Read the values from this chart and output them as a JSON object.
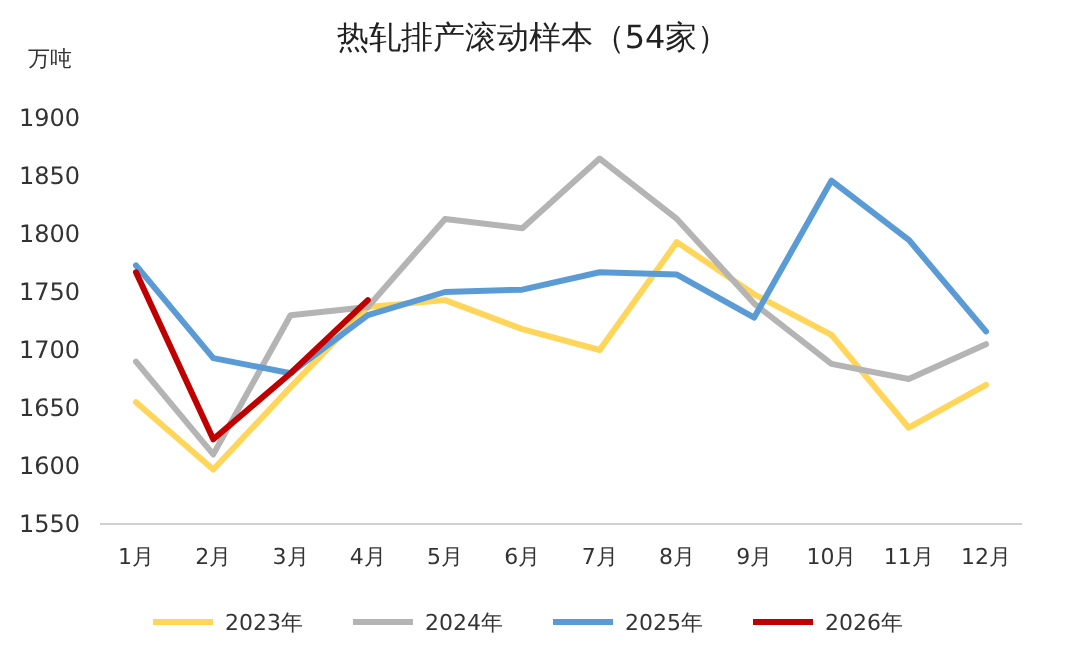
{
  "chart_data": {
    "type": "line",
    "title": "热轧排产滚动样本（54家）",
    "ylabel": "万吨",
    "categories": [
      "1月",
      "2月",
      "3月",
      "4月",
      "5月",
      "6月",
      "7月",
      "8月",
      "9月",
      "10月",
      "11月",
      "12月"
    ],
    "ylim": [
      1550,
      1900
    ],
    "yticks": [
      1550,
      1600,
      1650,
      1700,
      1750,
      1800,
      1850,
      1900
    ],
    "grid": false,
    "legend": "bottom",
    "series": [
      {
        "name": "2023年",
        "color": "#ffd55a",
        "values": [
          1655,
          1597,
          1668,
          1737,
          1743,
          1718,
          1700,
          1793,
          1748,
          1713,
          1633,
          1670
        ]
      },
      {
        "name": "2024年",
        "color": "#b4b4b4",
        "values": [
          1690,
          1610,
          1730,
          1737,
          1813,
          1805,
          1865,
          1813,
          1740,
          1688,
          1675,
          1705
        ]
      },
      {
        "name": "2025年",
        "color": "#5b9bd5",
        "values": [
          1773,
          1693,
          1680,
          1730,
          1750,
          1752,
          1767,
          1765,
          1728,
          1846,
          1795,
          1716
        ]
      },
      {
        "name": "2026年",
        "color": "#c00000",
        "values": [
          1767,
          1623,
          1680,
          1743,
          null,
          null,
          null,
          null,
          null,
          null,
          null,
          null
        ]
      }
    ]
  }
}
